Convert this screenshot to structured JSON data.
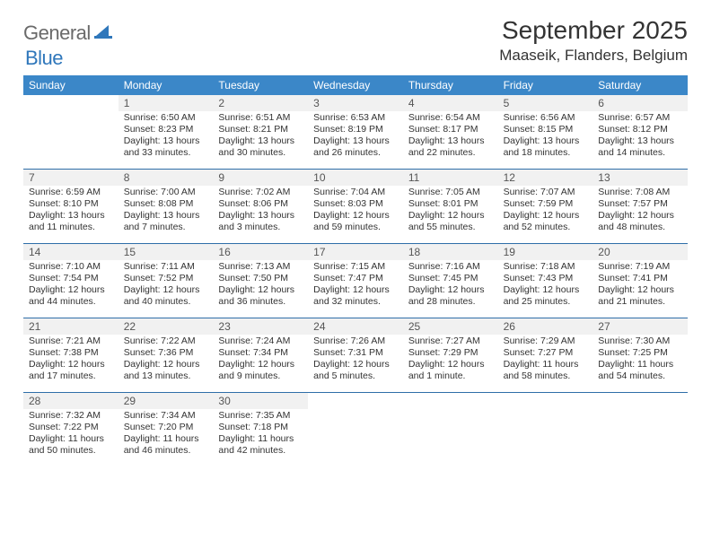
{
  "logo": {
    "text1": "General",
    "text2": "Blue",
    "color1": "#6a6a6a",
    "color2": "#2f77bb"
  },
  "title": "September 2025",
  "location": "Maaseik, Flanders, Belgium",
  "colors": {
    "header_band": "#3b87c8",
    "header_text": "#ffffff",
    "rule": "#2f6ea8",
    "daynum_bg": "#f1f1f1",
    "body_text": "#333333"
  },
  "days_of_week": [
    "Sunday",
    "Monday",
    "Tuesday",
    "Wednesday",
    "Thursday",
    "Friday",
    "Saturday"
  ],
  "weeks": [
    [
      null,
      {
        "n": "1",
        "sr": "6:50 AM",
        "ss": "8:23 PM",
        "dl": "13 hours and 33 minutes."
      },
      {
        "n": "2",
        "sr": "6:51 AM",
        "ss": "8:21 PM",
        "dl": "13 hours and 30 minutes."
      },
      {
        "n": "3",
        "sr": "6:53 AM",
        "ss": "8:19 PM",
        "dl": "13 hours and 26 minutes."
      },
      {
        "n": "4",
        "sr": "6:54 AM",
        "ss": "8:17 PM",
        "dl": "13 hours and 22 minutes."
      },
      {
        "n": "5",
        "sr": "6:56 AM",
        "ss": "8:15 PM",
        "dl": "13 hours and 18 minutes."
      },
      {
        "n": "6",
        "sr": "6:57 AM",
        "ss": "8:12 PM",
        "dl": "13 hours and 14 minutes."
      }
    ],
    [
      {
        "n": "7",
        "sr": "6:59 AM",
        "ss": "8:10 PM",
        "dl": "13 hours and 11 minutes."
      },
      {
        "n": "8",
        "sr": "7:00 AM",
        "ss": "8:08 PM",
        "dl": "13 hours and 7 minutes."
      },
      {
        "n": "9",
        "sr": "7:02 AM",
        "ss": "8:06 PM",
        "dl": "13 hours and 3 minutes."
      },
      {
        "n": "10",
        "sr": "7:04 AM",
        "ss": "8:03 PM",
        "dl": "12 hours and 59 minutes."
      },
      {
        "n": "11",
        "sr": "7:05 AM",
        "ss": "8:01 PM",
        "dl": "12 hours and 55 minutes."
      },
      {
        "n": "12",
        "sr": "7:07 AM",
        "ss": "7:59 PM",
        "dl": "12 hours and 52 minutes."
      },
      {
        "n": "13",
        "sr": "7:08 AM",
        "ss": "7:57 PM",
        "dl": "12 hours and 48 minutes."
      }
    ],
    [
      {
        "n": "14",
        "sr": "7:10 AM",
        "ss": "7:54 PM",
        "dl": "12 hours and 44 minutes."
      },
      {
        "n": "15",
        "sr": "7:11 AM",
        "ss": "7:52 PM",
        "dl": "12 hours and 40 minutes."
      },
      {
        "n": "16",
        "sr": "7:13 AM",
        "ss": "7:50 PM",
        "dl": "12 hours and 36 minutes."
      },
      {
        "n": "17",
        "sr": "7:15 AM",
        "ss": "7:47 PM",
        "dl": "12 hours and 32 minutes."
      },
      {
        "n": "18",
        "sr": "7:16 AM",
        "ss": "7:45 PM",
        "dl": "12 hours and 28 minutes."
      },
      {
        "n": "19",
        "sr": "7:18 AM",
        "ss": "7:43 PM",
        "dl": "12 hours and 25 minutes."
      },
      {
        "n": "20",
        "sr": "7:19 AM",
        "ss": "7:41 PM",
        "dl": "12 hours and 21 minutes."
      }
    ],
    [
      {
        "n": "21",
        "sr": "7:21 AM",
        "ss": "7:38 PM",
        "dl": "12 hours and 17 minutes."
      },
      {
        "n": "22",
        "sr": "7:22 AM",
        "ss": "7:36 PM",
        "dl": "12 hours and 13 minutes."
      },
      {
        "n": "23",
        "sr": "7:24 AM",
        "ss": "7:34 PM",
        "dl": "12 hours and 9 minutes."
      },
      {
        "n": "24",
        "sr": "7:26 AM",
        "ss": "7:31 PM",
        "dl": "12 hours and 5 minutes."
      },
      {
        "n": "25",
        "sr": "7:27 AM",
        "ss": "7:29 PM",
        "dl": "12 hours and 1 minute."
      },
      {
        "n": "26",
        "sr": "7:29 AM",
        "ss": "7:27 PM",
        "dl": "11 hours and 58 minutes."
      },
      {
        "n": "27",
        "sr": "7:30 AM",
        "ss": "7:25 PM",
        "dl": "11 hours and 54 minutes."
      }
    ],
    [
      {
        "n": "28",
        "sr": "7:32 AM",
        "ss": "7:22 PM",
        "dl": "11 hours and 50 minutes."
      },
      {
        "n": "29",
        "sr": "7:34 AM",
        "ss": "7:20 PM",
        "dl": "11 hours and 46 minutes."
      },
      {
        "n": "30",
        "sr": "7:35 AM",
        "ss": "7:18 PM",
        "dl": "11 hours and 42 minutes."
      },
      null,
      null,
      null,
      null
    ]
  ],
  "labels": {
    "sunrise": "Sunrise: ",
    "sunset": "Sunset: ",
    "daylight": "Daylight: "
  }
}
